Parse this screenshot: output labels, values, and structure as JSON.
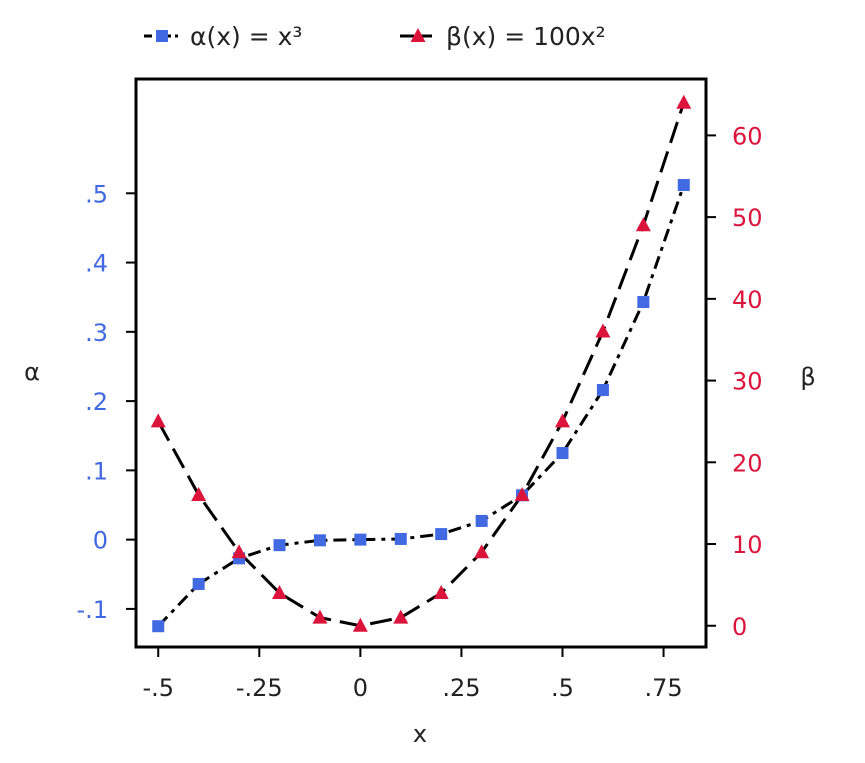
{
  "chart_data": {
    "type": "line",
    "title": "",
    "xlabel": "x",
    "ylabel_left": "α",
    "ylabel_right": "β",
    "x": [
      -0.5,
      -0.4,
      -0.3,
      -0.2,
      -0.1,
      0,
      0.1,
      0.2,
      0.3,
      0.4,
      0.5,
      0.6,
      0.7,
      0.8
    ],
    "xlim": [
      -0.555,
      0.855
    ],
    "ylim_left": [
      -0.155,
      0.665
    ],
    "ylim_right": [
      -2.6,
      66.9
    ],
    "x_ticks": [
      {
        "value": -0.5,
        "label": "-.5"
      },
      {
        "value": -0.25,
        "label": "-.25"
      },
      {
        "value": 0,
        "label": "0"
      },
      {
        "value": 0.25,
        "label": ".25"
      },
      {
        "value": 0.5,
        "label": ".5"
      },
      {
        "value": 0.75,
        "label": ".75"
      }
    ],
    "y_ticks_left": [
      {
        "value": -0.1,
        "label": "-.1"
      },
      {
        "value": 0,
        "label": "0"
      },
      {
        "value": 0.1,
        "label": ".1"
      },
      {
        "value": 0.2,
        "label": ".2"
      },
      {
        "value": 0.3,
        "label": ".3"
      },
      {
        "value": 0.4,
        "label": ".4"
      },
      {
        "value": 0.5,
        "label": ".5"
      }
    ],
    "y_ticks_right": [
      {
        "value": 0,
        "label": "0"
      },
      {
        "value": 10,
        "label": "10"
      },
      {
        "value": 20,
        "label": "20"
      },
      {
        "value": 30,
        "label": "30"
      },
      {
        "value": 40,
        "label": "40"
      },
      {
        "value": 50,
        "label": "50"
      },
      {
        "value": 60,
        "label": "60"
      }
    ],
    "series": [
      {
        "name": "α(x) = x³",
        "axis": "left",
        "marker": "square",
        "line_style": "dotted-dashed",
        "color": "#4169E1",
        "values": [
          -0.125,
          -0.064,
          -0.027,
          -0.008,
          -0.001,
          0,
          0.001,
          0.008,
          0.027,
          0.064,
          0.125,
          0.216,
          0.343,
          0.512
        ]
      },
      {
        "name": "β(x) = 100x²",
        "axis": "right",
        "marker": "triangle",
        "line_style": "dashed",
        "color": "#DC143C",
        "values": [
          25,
          16,
          9,
          4,
          1,
          0,
          1,
          4,
          9,
          16,
          25,
          36,
          49,
          64
        ]
      }
    ],
    "legend_position": "top",
    "grid": false,
    "left_axis_color": "#4169E1",
    "right_axis_color": "#DC143C",
    "line_color": "#000000"
  }
}
